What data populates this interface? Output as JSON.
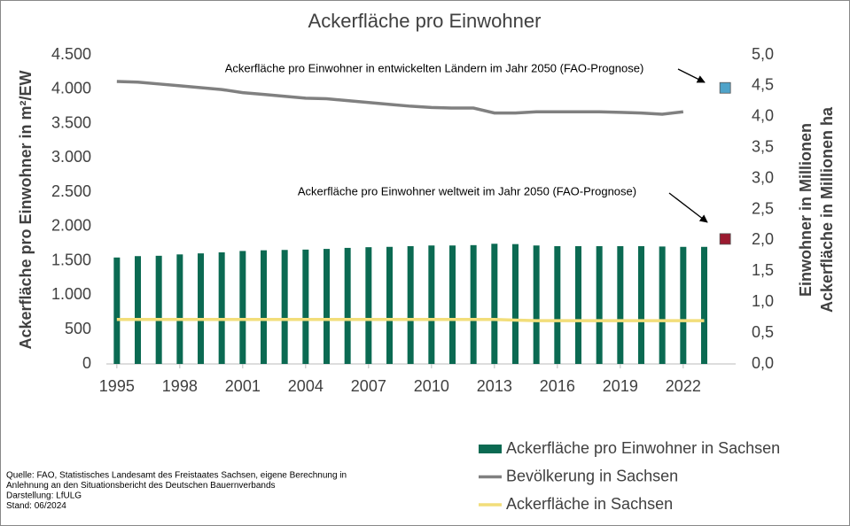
{
  "chart_data": {
    "type": "bar-line",
    "title": "Ackerfläche pro Einwohner",
    "ylabel": "Ackerfläche pro Einwohner in m²/EW",
    "y2label": [
      "Einwohner in Millionen",
      "Ackerfläche in Millionen ha"
    ],
    "x": [
      1995,
      1996,
      1997,
      1998,
      1999,
      2000,
      2001,
      2002,
      2003,
      2004,
      2005,
      2006,
      2007,
      2008,
      2009,
      2010,
      2011,
      2012,
      2013,
      2014,
      2015,
      2016,
      2017,
      2018,
      2019,
      2020,
      2021,
      2022,
      2023
    ],
    "xlim": [
      1994.5,
      2024.5
    ],
    "xticks": [
      1995,
      1998,
      2001,
      2004,
      2007,
      2010,
      2013,
      2016,
      2019,
      2022
    ],
    "ylim": [
      0,
      4500
    ],
    "yticks": [
      0,
      500,
      {
        "value": 1000,
        "label": "1.000"
      },
      {
        "value": 1500,
        "label": "1.500"
      },
      {
        "value": 2000,
        "label": "2.000"
      },
      {
        "value": 2500,
        "label": "2.500"
      },
      {
        "value": 3000,
        "label": "3.000"
      },
      {
        "value": 3500,
        "label": "3.500"
      },
      {
        "value": 4000,
        "label": "4.000"
      },
      {
        "value": 4500,
        "label": "4.500"
      }
    ],
    "y2lim": [
      0,
      5
    ],
    "y2ticks": [
      {
        "value": 0,
        "label": "0,0"
      },
      {
        "value": 0.5,
        "label": "0,5"
      },
      {
        "value": 1,
        "label": "1,0"
      },
      {
        "value": 1.5,
        "label": "1,5"
      },
      {
        "value": 2,
        "label": "2,0"
      },
      {
        "value": 2.5,
        "label": "2,5"
      },
      {
        "value": 3,
        "label": "3,0"
      },
      {
        "value": 3.5,
        "label": "3,5"
      },
      {
        "value": 4,
        "label": "4,0"
      },
      {
        "value": 4.5,
        "label": "4,5"
      },
      {
        "value": 5,
        "label": "5,0"
      }
    ],
    "series": [
      {
        "name": "Ackerfläche pro Einwohner in Sachsen",
        "kind": "bar",
        "color": "#0b6a52",
        "values": [
          1550,
          1570,
          1575,
          1595,
          1610,
          1625,
          1645,
          1655,
          1660,
          1665,
          1675,
          1690,
          1700,
          1705,
          1715,
          1725,
          1725,
          1730,
          1750,
          1745,
          1725,
          1715,
          1715,
          1715,
          1715,
          1715,
          1710,
          1705,
          1705
        ]
      },
      {
        "name": "Bevölkerung in Sachsen",
        "kind": "line",
        "axis": "y2",
        "color": "#808080",
        "values": [
          4.57,
          4.56,
          4.53,
          4.5,
          4.47,
          4.44,
          4.39,
          4.36,
          4.33,
          4.3,
          4.29,
          4.26,
          4.23,
          4.2,
          4.17,
          4.15,
          4.14,
          4.14,
          4.06,
          4.06,
          4.08,
          4.08,
          4.08,
          4.08,
          4.07,
          4.06,
          4.04,
          4.08,
          null
        ]
      },
      {
        "name": "Ackerfläche in Sachsen",
        "kind": "line",
        "axis": "y2",
        "color": "#f2de7a",
        "values": [
          0.72,
          0.72,
          0.72,
          0.72,
          0.72,
          0.72,
          0.72,
          0.72,
          0.72,
          0.72,
          0.72,
          0.72,
          0.72,
          0.72,
          0.72,
          0.72,
          0.72,
          0.72,
          0.72,
          0.71,
          0.7,
          0.7,
          0.7,
          0.7,
          0.7,
          0.7,
          0.7,
          0.7,
          0.7
        ]
      }
    ],
    "annotations": [
      {
        "text": "Ackerfläche pro Einwohner in entwickelten Ländern im Jahr 2050 (FAO-Prognose)",
        "x": 2024,
        "y": 4020,
        "color": "#4fa3c9"
      },
      {
        "text": "Ackerfläche pro Einwohner weltweit im Jahr 2050 (FAO-Prognose)",
        "x": 2024,
        "y": 1820,
        "color": "#9b1b30"
      }
    ],
    "source": [
      "Quelle: FAO, Statistisches Landesamt des Freistaates Sachsen, eigene Berechnung in",
      "Anlehnung an den Situationsbericht des Deutschen Bauernverbands",
      "Darstellung: LfULG",
      "Stand: 06/2024"
    ]
  }
}
